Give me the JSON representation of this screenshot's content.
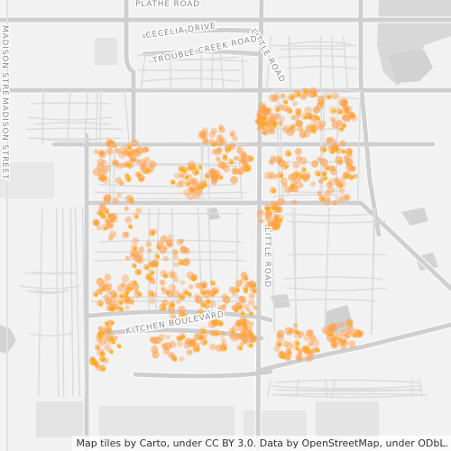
{
  "map": {
    "street_labels": [
      "PLATHE ROAD",
      "CECELIA DRIVE",
      "LITTLE ROAD",
      "TROUBLE CREEK ROAD",
      "MADISON STREET",
      "MADISON STREET",
      "LITTLE ROAD",
      "KITCHEN BOULEVARD"
    ],
    "attribution": "Map tiles by Carto, under CC BY 3.0. Data by OpenStreetMap, under ODbL.",
    "colors": {
      "background": "#f2f2f2",
      "road_major": "#cfcfcf",
      "road_minor": "#dddddd",
      "water": "#d3d3d3",
      "point_fill": "#ffa04a",
      "point_core": "#ffb000"
    },
    "layers": [
      "base-map",
      "density-points"
    ]
  }
}
